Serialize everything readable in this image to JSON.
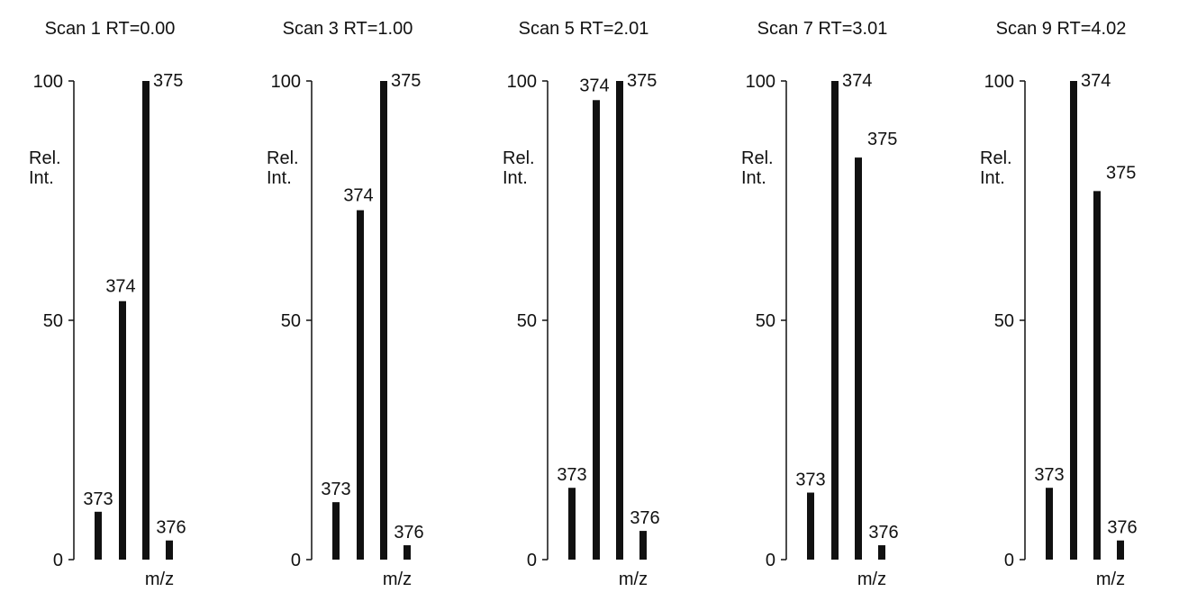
{
  "chart_data": [
    {
      "type": "bar",
      "title": "Scan 1  RT=0.00",
      "ylabel": "Rel.\nInt.",
      "xlabel": "m/z",
      "yticks": [
        0,
        50,
        100
      ],
      "ylim": [
        0,
        100
      ],
      "categories": [
        "373",
        "374",
        "375",
        "376"
      ],
      "values": [
        10,
        54,
        100,
        4
      ],
      "bar_labels": [
        "373",
        "374",
        "375",
        "376"
      ],
      "grid": false
    },
    {
      "type": "bar",
      "title": "Scan 3  RT=1.00",
      "ylabel": "Rel.\nInt.",
      "xlabel": "m/z",
      "yticks": [
        0,
        50,
        100
      ],
      "ylim": [
        0,
        100
      ],
      "categories": [
        "373",
        "374",
        "375",
        "376"
      ],
      "values": [
        12,
        73,
        100,
        3
      ],
      "bar_labels": [
        "373",
        "374",
        "375",
        "376"
      ],
      "grid": false
    },
    {
      "type": "bar",
      "title": "Scan 5  RT=2.01",
      "ylabel": "Rel.\nInt.",
      "xlabel": "m/z",
      "yticks": [
        0,
        50,
        100
      ],
      "ylim": [
        0,
        100
      ],
      "categories": [
        "373",
        "374",
        "375",
        "376"
      ],
      "values": [
        15,
        96,
        100,
        6
      ],
      "bar_labels": [
        "373",
        "374",
        "375",
        "376"
      ],
      "grid": false
    },
    {
      "type": "bar",
      "title": "Scan 7  RT=3.01",
      "ylabel": "Rel.\nInt.",
      "xlabel": "m/z",
      "yticks": [
        0,
        50,
        100
      ],
      "ylim": [
        0,
        100
      ],
      "categories": [
        "373",
        "374",
        "375",
        "376"
      ],
      "values": [
        14,
        100,
        84,
        3
      ],
      "bar_labels": [
        "373",
        "374",
        "375",
        "376"
      ],
      "grid": false
    },
    {
      "type": "bar",
      "title": "Scan 9  RT=4.02",
      "ylabel": "Rel.\nInt.",
      "xlabel": "m/z",
      "yticks": [
        0,
        50,
        100
      ],
      "ylim": [
        0,
        100
      ],
      "categories": [
        "373",
        "374",
        "375",
        "376"
      ],
      "values": [
        15,
        100,
        77,
        4
      ],
      "bar_labels": [
        "373",
        "374",
        "375",
        "376"
      ],
      "grid": false
    }
  ]
}
